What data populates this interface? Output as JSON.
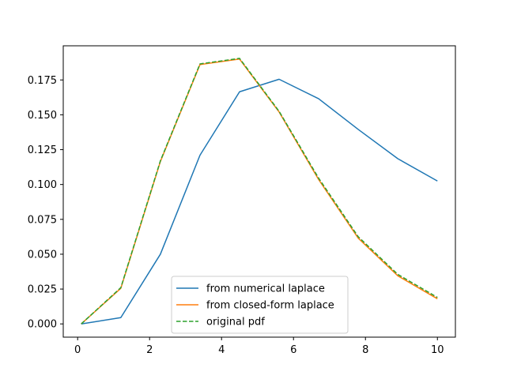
{
  "chart_data": {
    "type": "line",
    "title": "",
    "xlabel": "",
    "ylabel": "",
    "xlim": [
      -0.3999,
      10.4999
    ],
    "ylim": [
      -0.0095,
      0.1995
    ],
    "grid": false,
    "legend_position": "lower center",
    "x": [
      0.1,
      1.2,
      2.3,
      3.4,
      4.5,
      5.6,
      6.7,
      7.8,
      8.9,
      10.0
    ],
    "x_ticks": [
      0,
      2,
      4,
      6,
      8,
      10
    ],
    "x_tick_labels": [
      "0",
      "2",
      "4",
      "6",
      "8",
      "10"
    ],
    "y_ticks": [
      0.0,
      0.025,
      0.05,
      0.075,
      0.1,
      0.125,
      0.15,
      0.175
    ],
    "y_tick_labels": [
      "0.000",
      "0.025",
      "0.050",
      "0.075",
      "0.100",
      "0.125",
      "0.150",
      "0.175"
    ],
    "series": [
      {
        "name": "from numerical laplace",
        "color": "#1f77b4",
        "linestyle": "solid",
        "values": [
          0.0,
          0.0045,
          0.05,
          0.121,
          0.1665,
          0.1755,
          0.1615,
          0.1395,
          0.1185,
          0.1025
        ]
      },
      {
        "name": "from closed-form laplace",
        "color": "#ff7f0e",
        "linestyle": "solid",
        "values": [
          0.0,
          0.0255,
          0.1165,
          0.186,
          0.19,
          0.152,
          0.1035,
          0.0615,
          0.0345,
          0.018
        ]
      },
      {
        "name": "original pdf",
        "color": "#2ca02c",
        "linestyle": "dashed",
        "values": [
          0.0,
          0.026,
          0.117,
          0.1865,
          0.1905,
          0.1525,
          0.1045,
          0.0625,
          0.0355,
          0.019
        ]
      }
    ]
  }
}
